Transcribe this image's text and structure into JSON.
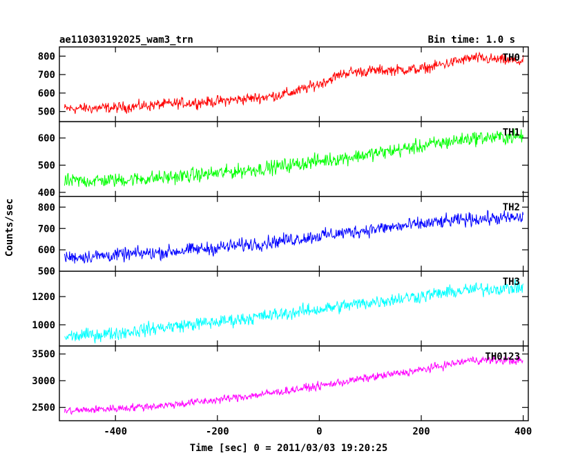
{
  "chart_data": {
    "type": "line",
    "title": "ae110303192025_wam3_trn",
    "subtitle": "Bin time: 1.0 s",
    "xlabel": "Time [sec] 0 = 2011/03/03 19:20:25",
    "ylabel": "Counts/sec",
    "xlim": [
      -510,
      410
    ],
    "x_ticks": [
      -400,
      -200,
      0,
      200,
      400
    ],
    "bin_time_s": 1.0,
    "panels": [
      {
        "name": "TH0",
        "color": "#ff0000",
        "ylim": [
          445,
          850
        ],
        "y_ticks": [
          500,
          600,
          700,
          800
        ],
        "trend": [
          {
            "x": -500,
            "y": 515
          },
          {
            "x": -400,
            "y": 520
          },
          {
            "x": -300,
            "y": 540
          },
          {
            "x": -200,
            "y": 555
          },
          {
            "x": -100,
            "y": 580
          },
          {
            "x": -50,
            "y": 605
          },
          {
            "x": 0,
            "y": 650
          },
          {
            "x": 50,
            "y": 710
          },
          {
            "x": 100,
            "y": 720
          },
          {
            "x": 200,
            "y": 730
          },
          {
            "x": 300,
            "y": 790
          },
          {
            "x": 400,
            "y": 770
          }
        ],
        "noise": 28
      },
      {
        "name": "TH1",
        "color": "#00ff00",
        "ylim": [
          385,
          660
        ],
        "y_ticks": [
          400,
          500,
          600
        ],
        "trend": [
          {
            "x": -500,
            "y": 440
          },
          {
            "x": -400,
            "y": 445
          },
          {
            "x": -300,
            "y": 455
          },
          {
            "x": -200,
            "y": 470
          },
          {
            "x": -100,
            "y": 490
          },
          {
            "x": 0,
            "y": 515
          },
          {
            "x": 100,
            "y": 540
          },
          {
            "x": 200,
            "y": 570
          },
          {
            "x": 300,
            "y": 600
          },
          {
            "x": 400,
            "y": 605
          }
        ],
        "noise": 25
      },
      {
        "name": "TH2",
        "color": "#0000ff",
        "ylim": [
          500,
          850
        ],
        "y_ticks": [
          500,
          600,
          700,
          800
        ],
        "trend": [
          {
            "x": -500,
            "y": 565
          },
          {
            "x": -400,
            "y": 575
          },
          {
            "x": -300,
            "y": 590
          },
          {
            "x": -200,
            "y": 610
          },
          {
            "x": -100,
            "y": 635
          },
          {
            "x": 0,
            "y": 665
          },
          {
            "x": 100,
            "y": 695
          },
          {
            "x": 200,
            "y": 720
          },
          {
            "x": 300,
            "y": 745
          },
          {
            "x": 400,
            "y": 750
          }
        ],
        "noise": 30
      },
      {
        "name": "TH3",
        "color": "#00ffff",
        "ylim": [
          850,
          1380
        ],
        "y_ticks": [
          1000,
          1200
        ],
        "trend": [
          {
            "x": -500,
            "y": 915
          },
          {
            "x": -400,
            "y": 940
          },
          {
            "x": -300,
            "y": 985
          },
          {
            "x": -200,
            "y": 1020
          },
          {
            "x": -100,
            "y": 1065
          },
          {
            "x": 0,
            "y": 1110
          },
          {
            "x": 100,
            "y": 1160
          },
          {
            "x": 200,
            "y": 1205
          },
          {
            "x": 300,
            "y": 1250
          },
          {
            "x": 400,
            "y": 1265
          }
        ],
        "noise": 45
      },
      {
        "name": "TH0123",
        "color": "#ff00ff",
        "ylim": [
          2250,
          3650
        ],
        "y_ticks": [
          2500,
          3000,
          3500
        ],
        "trend": [
          {
            "x": -500,
            "y": 2430
          },
          {
            "x": -400,
            "y": 2480
          },
          {
            "x": -300,
            "y": 2540
          },
          {
            "x": -200,
            "y": 2640
          },
          {
            "x": -100,
            "y": 2760
          },
          {
            "x": 0,
            "y": 2900
          },
          {
            "x": 100,
            "y": 3060
          },
          {
            "x": 200,
            "y": 3200
          },
          {
            "x": 300,
            "y": 3390
          },
          {
            "x": 400,
            "y": 3370
          }
        ],
        "noise": 70
      }
    ]
  }
}
